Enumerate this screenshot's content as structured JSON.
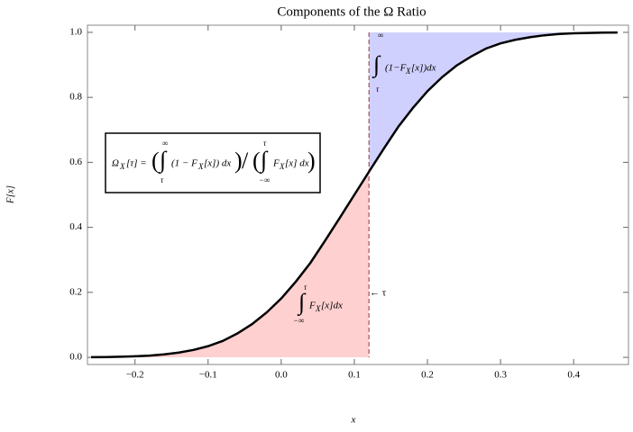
{
  "chart_data": {
    "type": "line",
    "title": "Components of the Ω Ratio",
    "xlabel": "x",
    "ylabel": "F[x]",
    "x": [
      -0.26,
      -0.24,
      -0.22,
      -0.2,
      -0.18,
      -0.16,
      -0.14,
      -0.12,
      -0.1,
      -0.08,
      -0.06,
      -0.04,
      -0.02,
      0,
      0.02,
      0.04,
      0.06,
      0.08,
      0.1,
      0.12,
      0.14,
      0.16,
      0.18,
      0.2,
      0.22,
      0.24,
      0.26,
      0.28,
      0.3,
      0.32,
      0.34,
      0.36,
      0.38,
      0.4,
      0.42,
      0.44,
      0.46
    ],
    "values": [
      0.0005,
      0.001,
      0.0018,
      0.0032,
      0.0054,
      0.0091,
      0.0146,
      0.0228,
      0.0344,
      0.0505,
      0.0735,
      0.102,
      0.138,
      0.181,
      0.233,
      0.291,
      0.359,
      0.429,
      0.5,
      0.571,
      0.641,
      0.709,
      0.767,
      0.819,
      0.862,
      0.898,
      0.926,
      0.95,
      0.966,
      0.977,
      0.985,
      0.991,
      0.995,
      0.997,
      0.998,
      0.999,
      0.9995
    ],
    "color": "#000000",
    "tau": 0.12,
    "lower_fill_color": "#ffd0d0",
    "upper_fill_color": "#d0d0ff",
    "tau_line_color": "#8b3a3a",
    "xlim": [
      -0.265,
      0.475
    ],
    "ylim": [
      -0.022,
      1.022
    ],
    "xticks": [
      {
        "value": -0.2,
        "label": "−0.2"
      },
      {
        "value": -0.1,
        "label": "−0.1"
      },
      {
        "value": 0,
        "label": "0.0"
      },
      0.1,
      0.2,
      0.3,
      0.4
    ],
    "yticks": [
      {
        "value": 0,
        "label": "0.0"
      },
      0.2,
      0.4,
      0.6,
      0.8,
      {
        "value": 1,
        "label": "1.0"
      }
    ],
    "annotations": {
      "tau_label": "← τ",
      "upper_integral": {
        "sign": "∫",
        "upper": "∞",
        "lower": "τ",
        "body": "(1−F",
        "sub": "X",
        "rest": "[x])dx"
      },
      "lower_integral": {
        "sign": "∫",
        "upper": "τ",
        "lower": "−∞",
        "body": "F",
        "sub": "X",
        "rest": "[x]dx"
      },
      "formula": {
        "lhs": "Ω",
        "lhs_sub": "X",
        "lhs_rest": "[τ] =",
        "open1": "(",
        "sign1": "∫",
        "upper1": "∞",
        "lower1": "τ",
        "body1": "(1 − F",
        "sub1": "X",
        "rest1": "[x]) dx",
        "close1": ")",
        "slash": "/",
        "open2": "(",
        "sign2": "∫",
        "upper2": "τ",
        "lower2": "−∞",
        "body2": "F",
        "sub2": "X",
        "rest2": "[x] dx",
        "close2": ")"
      }
    }
  }
}
